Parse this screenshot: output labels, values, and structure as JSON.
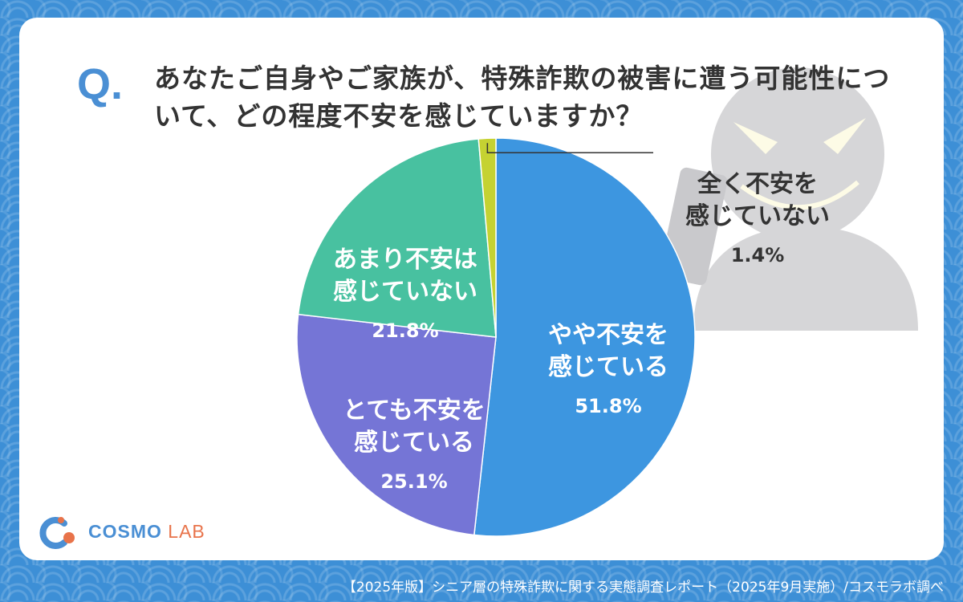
{
  "question": {
    "mark": "Q.",
    "text": "あなたご自身やご家族が、特殊詐欺の被害に遭う可能性について、どの程度不安を感じていますか？"
  },
  "chart_data": {
    "type": "pie",
    "title": "",
    "start_angle_deg": 0,
    "direction": "clockwise",
    "slices": [
      {
        "label": "やや不安を\n感じている",
        "value": 51.8,
        "value_text": "51.8%",
        "color": "#3d96e0"
      },
      {
        "label": "とても不安を\n感じている",
        "value": 25.1,
        "value_text": "25.1%",
        "color": "#7575d6"
      },
      {
        "label": "あまり不安は\n感じていない",
        "value": 21.8,
        "value_text": "21.8%",
        "color": "#48c1a0"
      },
      {
        "label": "全く不安を\n感じていない",
        "value": 1.4,
        "value_text": "1.4%",
        "color": "#c5d232"
      }
    ]
  },
  "logo": {
    "brand_main": "COSMO ",
    "brand_accent": "LAB"
  },
  "footer": {
    "source": "【2025年版】シニア層の特殊詐欺に関する実態調査レポート（2025年9月実施）/コスモラボ調べ"
  },
  "colors": {
    "background": "#3d8fd6",
    "card": "#ffffff",
    "accent": "#4a8fd4",
    "thief": "#d6d6d8"
  }
}
